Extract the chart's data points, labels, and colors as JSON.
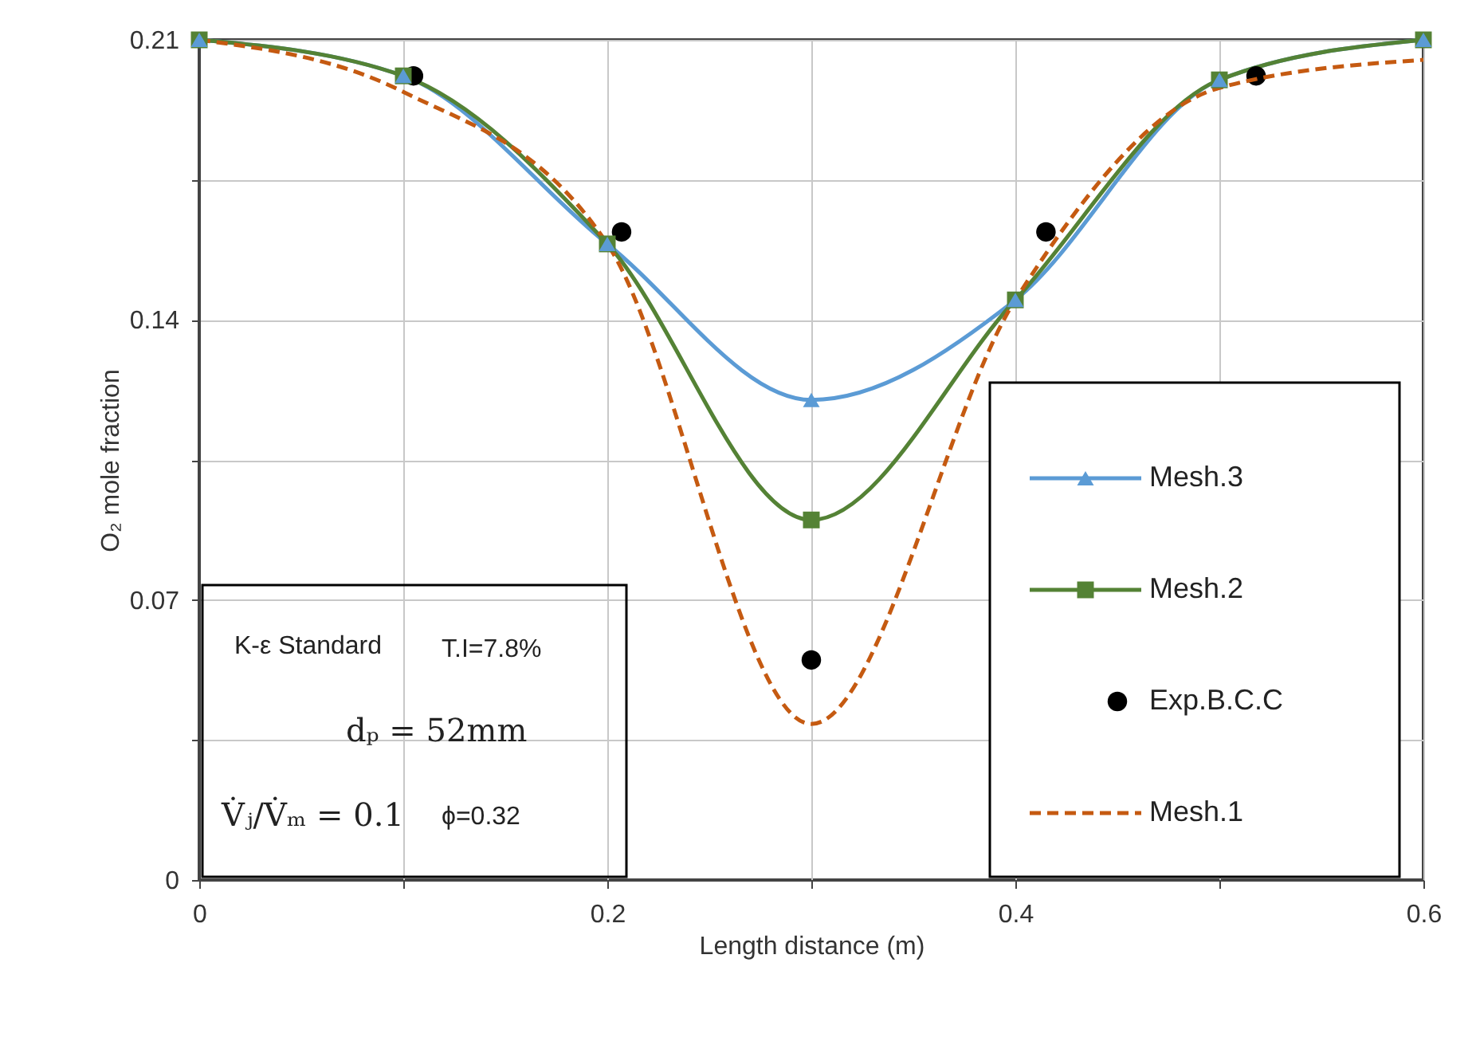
{
  "chart_data": {
    "type": "line",
    "xlabel": "Length  distance (m)",
    "ylabel": "O₂  mole fraction",
    "x": [
      0,
      0.1,
      0.2,
      0.3,
      0.4,
      0.5,
      0.6
    ],
    "series": [
      {
        "name": "Mesh.3",
        "color": "#5b9bd5",
        "marker": "triangle",
        "values": [
          0.21,
          0.201,
          0.159,
          0.12,
          0.145,
          0.2,
          0.21
        ]
      },
      {
        "name": "Mesh.2",
        "color": "#548235",
        "marker": "square",
        "values": [
          0.21,
          0.201,
          0.159,
          0.09,
          0.145,
          0.2,
          0.21
        ]
      },
      {
        "name": "Exp.B.C.C",
        "type": "scatter",
        "color": "#000000",
        "marker": "circle",
        "x": [
          0.105,
          0.207,
          0.3,
          0.415,
          0.518
        ],
        "values": [
          0.201,
          0.162,
          0.055,
          0.162,
          0.201
        ]
      },
      {
        "name": "Mesh.1",
        "color": "#c55a11",
        "marker": "none",
        "line_style": "dashed",
        "values": [
          0.21,
          0.197,
          0.159,
          0.039,
          0.145,
          0.198,
          0.205
        ]
      }
    ],
    "xlim": [
      0,
      0.6
    ],
    "ylim": [
      0,
      0.21
    ],
    "xticks": [
      0,
      {
        "value": 0.1,
        "label": null
      },
      0.2,
      {
        "value": 0.3,
        "label": null
      },
      0.4,
      {
        "value": 0.5,
        "label": null
      },
      0.6
    ],
    "yticks": [
      0,
      {
        "value": 0.035,
        "label": null
      },
      0.07,
      {
        "value": 0.105,
        "label": null
      },
      0.14,
      {
        "value": 0.175,
        "label": null
      },
      0.21
    ],
    "grid": true,
    "legend": "bottom right",
    "annotations": [
      "K-ε Standard",
      "T.I=7.8%",
      "dₚ = 52mm",
      "V̇ⱼ/V̇ₘ = 0.1",
      "ϕ=0.32"
    ]
  }
}
